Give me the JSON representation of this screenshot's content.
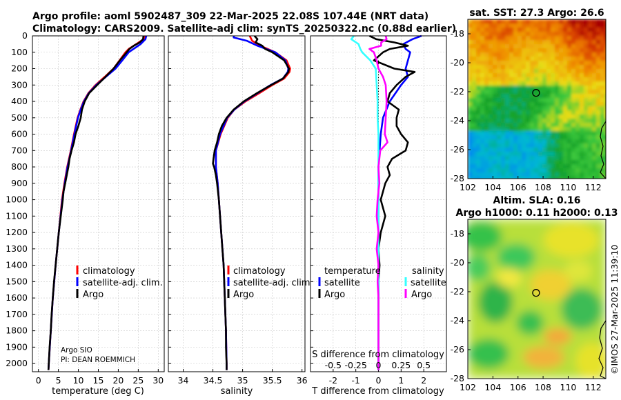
{
  "title": {
    "line1": "Argo profile: aoml 5902487_309 22-Mar-2025 22.08S 107.44E (NRT data)",
    "line2": "Climatology: CARS2009. Satellite-adj clim: synTS_20250322.nc (0.88d earlier)"
  },
  "depth_axis": {
    "ylim": [
      0,
      2050
    ],
    "ticks": [
      0,
      100,
      200,
      300,
      400,
      500,
      600,
      700,
      800,
      900,
      1000,
      1100,
      1200,
      1300,
      1400,
      1500,
      1600,
      1700,
      1800,
      1900,
      2000
    ]
  },
  "credits": {
    "institution": "Argo SIO",
    "pi": "PI: DEAN ROEMMICH"
  },
  "colors": {
    "climatology": "#ff0000",
    "satellite": "#0000ff",
    "argo": "#000000",
    "sat_s": "#33ffff",
    "argo_s": "#ff00ff"
  },
  "chart_data": [
    {
      "type": "line",
      "name": "temperature-profile",
      "xlabel": "temperature (deg C)",
      "xlim": [
        -1.5,
        31.5
      ],
      "xticks": [
        0,
        5,
        10,
        15,
        20,
        25,
        30
      ],
      "legend": [
        "climatology",
        "satellite-adj. clim.",
        "Argo"
      ],
      "series": [
        {
          "name": "climatology",
          "color": "#ff0000",
          "depth": [
            0,
            20,
            50,
            80,
            100,
            150,
            200,
            250,
            300,
            350,
            400,
            450,
            500,
            600,
            700,
            800,
            900,
            1000,
            1200,
            1400,
            1600,
            1800,
            2000,
            2040
          ],
          "values": [
            26.7,
            26.3,
            24.5,
            22.6,
            21.8,
            20.3,
            18.8,
            16.6,
            14.3,
            12.5,
            11.3,
            10.5,
            9.8,
            8.9,
            8.1,
            7.2,
            6.5,
            5.9,
            5.1,
            4.3,
            3.6,
            3.1,
            2.6,
            2.5
          ]
        },
        {
          "name": "satellite-adj. clim.",
          "color": "#0000ff",
          "depth": [
            0,
            20,
            50,
            80,
            100,
            150,
            200,
            250,
            300,
            350,
            400,
            450,
            500,
            600,
            700,
            800,
            900,
            1000,
            1200,
            1400,
            1600,
            1800,
            2000,
            2040
          ],
          "values": [
            27.0,
            26.8,
            25.6,
            23.8,
            22.6,
            21.0,
            19.3,
            16.9,
            14.5,
            12.6,
            11.4,
            10.6,
            9.9,
            9.0,
            8.2,
            7.3,
            6.6,
            6.0,
            5.1,
            4.3,
            3.6,
            3.1,
            2.6,
            2.5
          ]
        },
        {
          "name": "Argo",
          "color": "#000000",
          "depth": [
            0,
            20,
            40,
            60,
            80,
            100,
            150,
            200,
            250,
            300,
            350,
            400,
            450,
            500,
            550,
            600,
            650,
            700,
            750,
            800,
            850,
            900,
            950,
            1000,
            1100,
            1200,
            1300,
            1400,
            1500,
            1600,
            1700,
            1800,
            1900,
            2000,
            2040
          ],
          "values": [
            26.3,
            26.2,
            25.4,
            23.9,
            22.8,
            22.1,
            20.4,
            18.8,
            16.8,
            14.7,
            12.7,
            11.6,
            10.9,
            10.6,
            10.0,
            9.3,
            8.9,
            8.3,
            7.8,
            7.5,
            7.1,
            6.7,
            6.3,
            6.1,
            5.6,
            5.1,
            4.7,
            4.3,
            3.9,
            3.6,
            3.3,
            3.1,
            2.8,
            2.6,
            2.5
          ]
        }
      ]
    },
    {
      "type": "line",
      "name": "salinity-profile",
      "xlabel": "salinity",
      "xlim": [
        33.75,
        36.05
      ],
      "xticks": [
        34,
        34.5,
        35,
        35.5,
        36
      ],
      "legend": [
        "climatology",
        "satellite-adj. clim.",
        "Argo"
      ],
      "series": [
        {
          "name": "climatology",
          "color": "#ff0000",
          "depth": [
            0,
            30,
            60,
            100,
            150,
            200,
            220,
            260,
            300,
            350,
            400,
            450,
            500,
            600,
            700,
            800,
            900,
            1000,
            1200,
            1400,
            1600,
            1800,
            2000,
            2040
          ],
          "values": [
            35.12,
            35.16,
            35.3,
            35.55,
            35.74,
            35.8,
            35.79,
            35.7,
            35.5,
            35.28,
            35.05,
            34.86,
            34.75,
            34.63,
            34.55,
            34.55,
            34.58,
            34.6,
            34.64,
            34.68,
            34.7,
            34.72,
            34.73,
            34.73
          ]
        },
        {
          "name": "satellite-adj. clim.",
          "color": "#0000ff",
          "depth": [
            0,
            10,
            30,
            60,
            100,
            150,
            200,
            220,
            260,
            300,
            350,
            400,
            450,
            500,
            600,
            700,
            800,
            900,
            1000,
            1200,
            1400,
            1600,
            1800,
            2000,
            2040
          ],
          "values": [
            34.85,
            34.85,
            35.07,
            35.25,
            35.55,
            35.72,
            35.77,
            35.76,
            35.68,
            35.47,
            35.25,
            35.03,
            34.86,
            34.74,
            34.62,
            34.55,
            34.55,
            34.58,
            34.6,
            34.64,
            34.68,
            34.7,
            34.72,
            34.73,
            34.73
          ]
        },
        {
          "name": "Argo",
          "color": "#000000",
          "depth": [
            0,
            20,
            40,
            60,
            80,
            100,
            150,
            200,
            220,
            260,
            300,
            350,
            400,
            450,
            500,
            550,
            600,
            650,
            700,
            750,
            780,
            800,
            850,
            900,
            1000,
            1100,
            1200,
            1300,
            1400,
            1500,
            1600,
            1700,
            1800,
            1900,
            2000,
            2040
          ],
          "values": [
            35.2,
            35.25,
            35.22,
            35.33,
            35.38,
            35.5,
            35.7,
            35.78,
            35.77,
            35.68,
            35.48,
            35.24,
            35.02,
            34.85,
            34.73,
            34.65,
            34.6,
            34.57,
            34.53,
            34.51,
            34.5,
            34.52,
            34.55,
            34.57,
            34.6,
            34.62,
            34.64,
            34.66,
            34.68,
            34.69,
            34.7,
            34.71,
            34.72,
            34.72,
            34.73,
            34.73
          ]
        }
      ]
    },
    {
      "type": "line",
      "name": "difference-profile",
      "xlabel": "T difference from climatology",
      "xlim": [
        -3.0,
        3.0
      ],
      "xticks": [
        -2,
        -1,
        0,
        1,
        2
      ],
      "s_axis_label": "S difference from climatology",
      "s_ticks": [
        "-0.5",
        "-0.25",
        "0",
        "0.25",
        "0.5"
      ],
      "s_scale": 4,
      "legend_headers": {
        "temperature": "temperature",
        "salinity": "salinity"
      },
      "legend": [
        "satellite",
        "Argo",
        "satellite",
        "Argo"
      ],
      "series": [
        {
          "name": "satellite T",
          "color": "#0000ff",
          "depth": [
            0,
            20,
            50,
            80,
            100,
            150,
            200,
            250,
            300,
            400,
            500,
            600,
            700,
            800,
            1000,
            1500,
            2000,
            2040
          ],
          "values": [
            1.9,
            1.5,
            1.1,
            1.2,
            1.4,
            1.3,
            1.2,
            1.3,
            1.0,
            0.5,
            0.2,
            0.1,
            0.05,
            0.0,
            0.0,
            0.0,
            0.0,
            0.0
          ]
        },
        {
          "name": "Argo T",
          "color": "#000000",
          "depth": [
            0,
            20,
            40,
            60,
            80,
            100,
            150,
            200,
            220,
            250,
            300,
            350,
            400,
            450,
            500,
            550,
            600,
            650,
            700,
            750,
            800,
            850,
            900,
            950,
            1000,
            1100,
            1200,
            1300,
            1400,
            1500,
            1600,
            1800,
            2000,
            2040
          ],
          "values": [
            -0.4,
            -0.1,
            0.7,
            1.3,
            0.5,
            0.2,
            -0.2,
            0.7,
            1.6,
            1.2,
            0.8,
            0.5,
            0.4,
            0.9,
            0.8,
            0.8,
            1.0,
            1.3,
            1.2,
            0.6,
            0.4,
            0.5,
            0.3,
            0.2,
            0.1,
            0.3,
            0.1,
            0.0,
            0.05,
            0.0,
            0.0,
            0.0,
            0.0,
            0.0
          ]
        },
        {
          "name": "satellite S",
          "color": "#33ffff",
          "depth": [
            0,
            20,
            50,
            80,
            100,
            150,
            200,
            300,
            400,
            500,
            600,
            700,
            800,
            1000,
            1500,
            2000,
            2040
          ],
          "values": [
            -0.27,
            -0.3,
            -0.22,
            -0.2,
            -0.18,
            -0.09,
            -0.03,
            -0.02,
            -0.01,
            -0.01,
            0.0,
            0.0,
            0.0,
            0.0,
            0.0,
            0.0,
            0.0
          ]
        },
        {
          "name": "Argo S",
          "color": "#ff00ff",
          "depth": [
            0,
            20,
            40,
            60,
            80,
            100,
            150,
            200,
            250,
            300,
            400,
            500,
            600,
            650,
            700,
            800,
            900,
            1000,
            1100,
            1200,
            1300,
            1400,
            1500,
            1600,
            1800,
            2000,
            2040
          ],
          "values": [
            0.08,
            0.09,
            0.03,
            0.03,
            -0.1,
            -0.05,
            -0.02,
            0.0,
            0.05,
            0.08,
            0.09,
            0.08,
            0.07,
            0.1,
            0.02,
            0.0,
            0.01,
            -0.01,
            -0.02,
            0.0,
            -0.02,
            0.0,
            -0.01,
            0.0,
            0.0,
            0.0,
            0.0
          ]
        }
      ]
    }
  ],
  "maps": [
    {
      "title": "sat. SST: 27.3 Argo: 26.6",
      "xlim": [
        102,
        113
      ],
      "ylim": [
        -28,
        -17
      ],
      "xticks": [
        102,
        104,
        106,
        108,
        110,
        112
      ],
      "yticks": [
        -18,
        -20,
        -22,
        -24,
        -26,
        -28
      ],
      "profile_lon": 107.44,
      "profile_lat": -22.08
    },
    {
      "title": "Altim. SLA: 0.16",
      "subtitle": "Argo h1000: 0.11 h2000: 0.13",
      "xlim": [
        102,
        113
      ],
      "ylim": [
        -28,
        -17
      ],
      "xticks": [
        102,
        104,
        106,
        108,
        110,
        112
      ],
      "yticks": [
        -18,
        -20,
        -22,
        -24,
        -26,
        -28
      ],
      "profile_lon": 107.44,
      "profile_lat": -22.08
    }
  ],
  "watermark": "©IMOS 27-Mar-2025 11:39:10"
}
